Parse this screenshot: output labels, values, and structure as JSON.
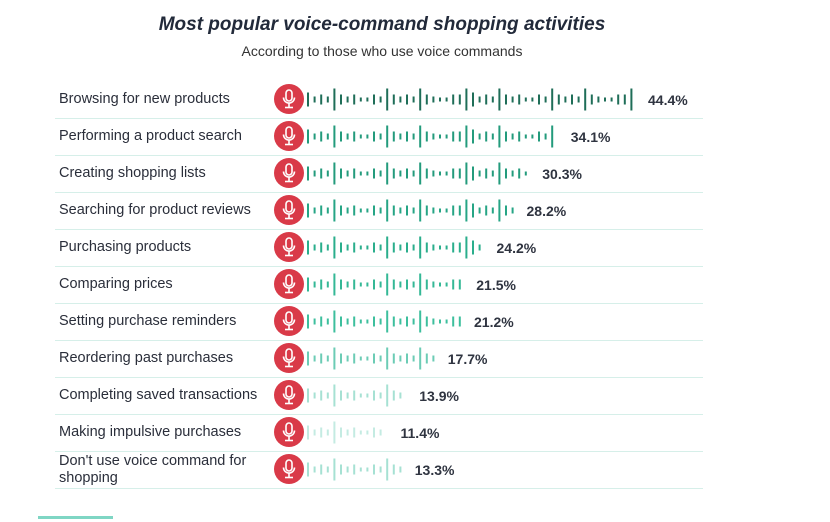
{
  "chart_data": {
    "type": "bar",
    "title": "Most popular voice-command shopping activities",
    "subtitle": "According to those who use voice commands",
    "categories": [
      "Browsing for new products",
      "Performing a product search",
      "Creating shopping lists",
      "Searching for product reviews",
      "Purchasing products",
      "Comparing prices",
      "Setting purchase reminders",
      "Reordering past purchases",
      "Completing saved transactions",
      "Making impulsive purchases",
      "Don't use voice command for shopping"
    ],
    "values": [
      44.4,
      34.1,
      30.3,
      28.2,
      24.2,
      21.5,
      21.2,
      17.7,
      13.9,
      11.4,
      13.3
    ],
    "labels": [
      "44.4%",
      "34.1%",
      "30.3%",
      "28.2%",
      "24.2%",
      "21.5%",
      "21.2%",
      "17.7%",
      "13.9%",
      "11.4%",
      "13.3%"
    ],
    "bar_colors": [
      "#1f6e58",
      "#239b7c",
      "#239b7c",
      "#26a585",
      "#2aae8c",
      "#34b896",
      "#3dbf9d",
      "#6cccb5",
      "#a6e1d3",
      "#c4ebe2",
      "#a6e1d3"
    ],
    "icon": "microphone-icon",
    "icon_color": "#d93a48"
  }
}
